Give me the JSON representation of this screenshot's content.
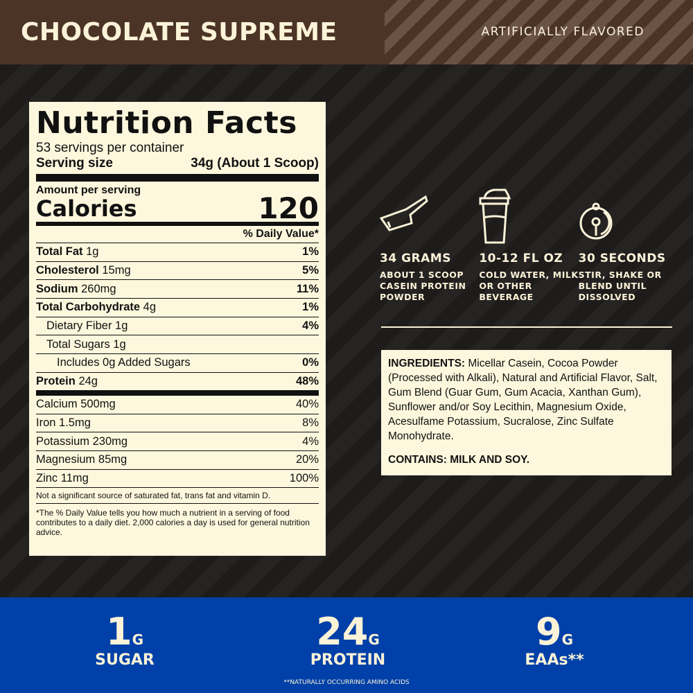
{
  "header": {
    "title": "CHOCOLATE SUPREME",
    "flavor": "ARTIFICIALLY FLAVORED"
  },
  "facts": {
    "heading": "Nutrition Facts",
    "servings": "53 servings per container",
    "serving_size_label": "Serving size",
    "serving_size_value": "34g (About 1 Scoop)",
    "amount_per_serving": "Amount per serving",
    "calories_label": "Calories",
    "calories_value": "120",
    "dv_header": "% Daily Value*",
    "rows": [
      {
        "name": "Total Fat",
        "amt": "1g",
        "dv": "1%",
        "bold": true
      },
      {
        "name": "Cholesterol",
        "amt": "15mg",
        "dv": "5%",
        "bold": true
      },
      {
        "name": "Sodium",
        "amt": "260mg",
        "dv": "11%",
        "bold": true
      },
      {
        "name": "Total Carbohydrate",
        "amt": "4g",
        "dv": "1%",
        "bold": true
      },
      {
        "name": "Dietary Fiber",
        "amt": "1g",
        "dv": "4%",
        "indent": 1
      },
      {
        "name": "Total Sugars",
        "amt": "1g",
        "dv": "",
        "indent": 1
      },
      {
        "name": "Includes 0g Added Sugars",
        "amt": "",
        "dv": "0%",
        "indent": 2
      },
      {
        "name": "Protein",
        "amt": "24g",
        "dv": "48%",
        "bold": true
      },
      {
        "name": "Calcium",
        "amt": "500mg",
        "dv": "40%"
      },
      {
        "name": "Iron",
        "amt": "1.5mg",
        "dv": "8%"
      },
      {
        "name": "Potassium",
        "amt": "230mg",
        "dv": "4%"
      },
      {
        "name": "Magnesium",
        "amt": "85mg",
        "dv": "20%"
      },
      {
        "name": "Zinc",
        "amt": "11mg",
        "dv": "100%"
      }
    ],
    "not_significant": "Not a significant source of saturated fat, trans fat and vitamin D.",
    "footnote": "*The % Daily Value tells you how much a nutrient in a serving of food contributes to a daily diet. 2,000 calories a day is used for general nutrition advice."
  },
  "directions": [
    {
      "icon": "scoop-icon",
      "title": "34 GRAMS",
      "desc": "ABOUT 1 SCOOP CASEIN PROTEIN POWDER"
    },
    {
      "icon": "shaker-icon",
      "title": "10-12 FL OZ",
      "desc": "COLD WATER, MILK OR OTHER BEVERAGE"
    },
    {
      "icon": "stopwatch-icon",
      "title": "30 SECONDS",
      "desc": "STIR, SHAKE OR BLEND UNTIL DISSOLVED"
    }
  ],
  "ingredients": {
    "label": "INGREDIENTS:",
    "text": " Micellar Casein, Cocoa Powder (Processed with Alkali), Natural and Artificial Flavor, Salt, Gum Blend (Guar Gum, Gum Acacia, Xanthan Gum), Sunflower and/or Soy Lecithin, Magnesium Oxide, Acesulfame Potassium, Sucralose, Zinc Sulfate Monohydrate.",
    "contains": "CONTAINS: MILK AND SOY."
  },
  "stats": [
    {
      "value": "1",
      "unit": "G",
      "label": "SUGAR"
    },
    {
      "value": "24",
      "unit": "G",
      "label": "PROTEIN"
    },
    {
      "value": "9",
      "unit": "G",
      "label": "EAAs**"
    }
  ],
  "stats_note": "**NATURALLY OCCURRING AMINO ACIDS",
  "colors": {
    "header": "#4b3426",
    "background": "#211e1e",
    "label": "#fdf7dd",
    "band": "#0040a8",
    "text_light": "#fbf3d8"
  }
}
